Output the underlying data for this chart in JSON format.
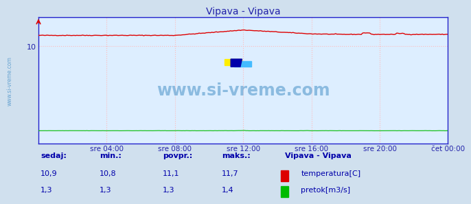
{
  "title": "Vipava - Vipava",
  "bg_color": "#d0e0ee",
  "plot_bg_color": "#ddeeff",
  "grid_color": "#ffbbbb",
  "border_color": "#2222cc",
  "title_color": "#2222aa",
  "axis_label_color": "#2222aa",
  "watermark_text": "www.si-vreme.com",
  "watermark_color": "#5599cc",
  "sidebar_text": "www.si-vreme.com",
  "xtick_labels": [
    "sre 04:00",
    "sre 08:00",
    "sre 12:00",
    "sre 16:00",
    "sre 20:00",
    "čet 00:00"
  ],
  "xtick_positions": [
    48,
    96,
    144,
    192,
    240,
    288
  ],
  "temp_color": "#dd0000",
  "flow_color": "#00bb00",
  "legend_title": "Vipava - Vipava",
  "legend_items": [
    "temperatura[C]",
    "pretok[m3/s]"
  ],
  "stats_headers": [
    "sedaj:",
    "min.:",
    "povpr.:",
    "maks.:"
  ],
  "stats_temp": [
    "10,9",
    "10,8",
    "11,1",
    "11,7"
  ],
  "stats_flow": [
    "1,3",
    "1,3",
    "1,3",
    "1,4"
  ],
  "stats_color": "#0000aa",
  "ymin": 0,
  "ymax": 13,
  "ytick_val": 10,
  "n_points": 289
}
